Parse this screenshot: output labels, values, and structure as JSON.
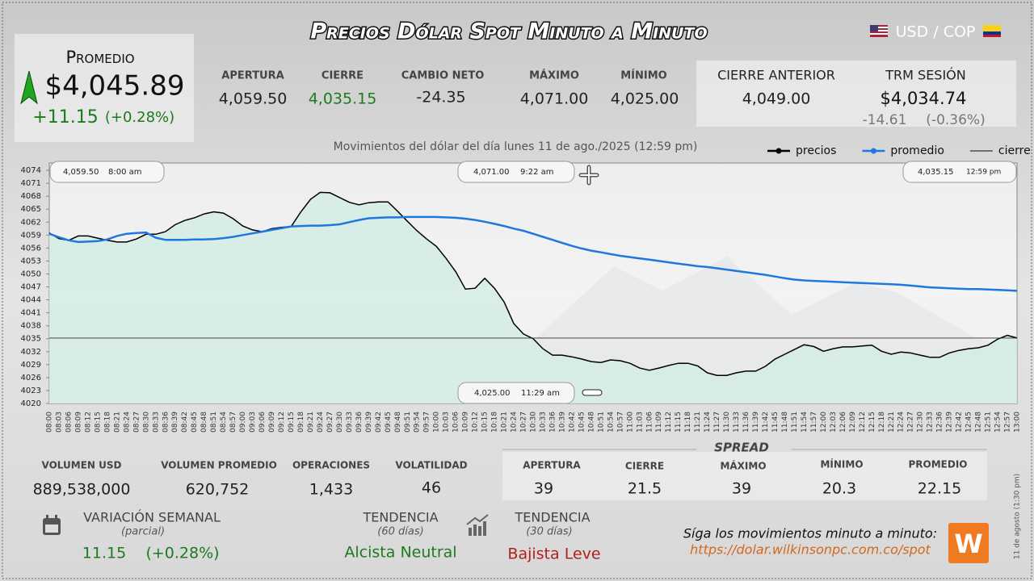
{
  "header": {
    "title": "Precios Dólar Spot Minuto a Minuto",
    "pair": "USD / COP"
  },
  "promedio": {
    "label": "Promedio",
    "value": "$4,045.89",
    "change": "+11.15",
    "change_pct": "(+0.28%)"
  },
  "stats": [
    {
      "label": "APERTURA",
      "value": "4,059.50"
    },
    {
      "label": "CIERRE",
      "value": "4,035.15"
    },
    {
      "label": "CAMBIO NETO",
      "value": "-24.35"
    },
    {
      "label": "MÁXIMO",
      "value": "4,071.00"
    },
    {
      "label": "MÍNIMO",
      "value": "4,025.00"
    }
  ],
  "previous": {
    "label": "CIERRE ANTERIOR",
    "value": "4,049.00"
  },
  "trm": {
    "label": "TRM SESIÓN",
    "value": "$4,034.74",
    "change": "-14.61",
    "change_pct": "(-0.36%)"
  },
  "chart_data": {
    "type": "line",
    "title": "Movimientos del dólar del día lunes 11 de ago./2025 (12:59 pm)",
    "categories": [
      "08:00",
      "08:03",
      "08:06",
      "08:09",
      "08:12",
      "08:15",
      "08:18",
      "08:21",
      "08:24",
      "08:27",
      "08:30",
      "08:33",
      "08:36",
      "08:39",
      "08:42",
      "08:45",
      "08:48",
      "08:51",
      "08:54",
      "08:57",
      "09:00",
      "09:03",
      "09:06",
      "09:09",
      "09:12",
      "09:15",
      "09:18",
      "09:21",
      "09:24",
      "09:27",
      "09:30",
      "09:33",
      "09:36",
      "09:39",
      "09:42",
      "09:45",
      "09:48",
      "09:51",
      "09:54",
      "09:57",
      "10:00",
      "10:03",
      "10:06",
      "10:09",
      "10:12",
      "10:15",
      "10:18",
      "10:21",
      "10:24",
      "10:27",
      "10:30",
      "10:33",
      "10:36",
      "10:39",
      "10:42",
      "10:45",
      "10:48",
      "10:51",
      "10:54",
      "10:57",
      "11:00",
      "11:03",
      "11:06",
      "11:09",
      "11:12",
      "11:15",
      "11:18",
      "11:21",
      "11:24",
      "11:27",
      "11:30",
      "11:33",
      "11:36",
      "11:39",
      "11:42",
      "11:45",
      "11:48",
      "11:51",
      "11:54",
      "11:57",
      "12:00",
      "12:03",
      "12:06",
      "12:09",
      "12:12",
      "12:15",
      "12:18",
      "12:21",
      "12:24",
      "12:27",
      "12:30",
      "12:33",
      "12:36",
      "12:39",
      "12:42",
      "12:45",
      "12:48",
      "12:51",
      "12:54",
      "12:57",
      "13:00"
    ],
    "series": [
      {
        "name": "precios",
        "color": "#000000",
        "marker": "circle",
        "fill": "#d4ece4",
        "values": [
          4059.5,
          4058.2,
          4057.8,
          4058.8,
          4058.8,
          4058.3,
          4057.8,
          4057.4,
          4057.4,
          4058.1,
          4059.2,
          4059.2,
          4059.8,
          4061.4,
          4062.4,
          4063,
          4063.9,
          4064.4,
          4064.1,
          4062.8,
          4061.1,
          4060.2,
          4059.8,
          4060.5,
          4060.8,
          4061,
          4064.4,
          4067.3,
          4068.9,
          4068.8,
          4067.7,
          4066.6,
          4066,
          4066.5,
          4066.7,
          4066.7,
          4064.5,
          4062.2,
          4060,
          4058.1,
          4056.4,
          4053.6,
          4050.5,
          4046.5,
          4046.7,
          4049,
          4046.7,
          4043.5,
          4038.5,
          4036.1,
          4035,
          4032.7,
          4031.2,
          4031.2,
          4030.8,
          4030.3,
          4029.7,
          4029.5,
          4030.1,
          4029.9,
          4029.3,
          4028.2,
          4027.7,
          4028.2,
          4028.8,
          4029.3,
          4029.3,
          4028.7,
          4027.1,
          4026.5,
          4026.5,
          4027.1,
          4027.5,
          4027.5,
          4028.6,
          4030.3,
          4031.4,
          4032.5,
          4033.6,
          4033.2,
          4032.1,
          4032.7,
          4033.1,
          4033.1,
          4033.3,
          4033.5,
          4032.1,
          4031.4,
          4031.9,
          4031.7,
          4031.2,
          4030.7,
          4030.7,
          4031.7,
          4032.3,
          4032.7,
          4032.9,
          4033.5,
          4034.9,
          4035.8,
          4035.15
        ]
      },
      {
        "name": "promedio",
        "color": "#1f78e0",
        "marker": "circle",
        "values": [
          4059.3,
          4058.5,
          4057.8,
          4057.4,
          4057.5,
          4057.6,
          4058,
          4058.8,
          4059.3,
          4059.5,
          4059.6,
          4058.4,
          4057.9,
          4057.9,
          4057.9,
          4058,
          4058,
          4058.1,
          4058.3,
          4058.6,
          4059,
          4059.4,
          4059.8,
          4060.2,
          4060.6,
          4061,
          4061.1,
          4061.2,
          4061.2,
          4061.3,
          4061.5,
          4062,
          4062.5,
          4062.9,
          4063,
          4063.1,
          4063.1,
          4063.2,
          4063.2,
          4063.2,
          4063.2,
          4063.1,
          4063,
          4062.8,
          4062.5,
          4062.1,
          4061.6,
          4061.1,
          4060.5,
          4060,
          4059.3,
          4058.6,
          4057.9,
          4057.2,
          4056.5,
          4055.9,
          4055.4,
          4055,
          4054.6,
          4054.2,
          4053.9,
          4053.6,
          4053.3,
          4053,
          4052.7,
          4052.4,
          4052.1,
          4051.8,
          4051.6,
          4051.3,
          4051,
          4050.7,
          4050.4,
          4050.1,
          4049.8,
          4049.4,
          4049,
          4048.7,
          4048.5,
          4048.4,
          4048.3,
          4048.2,
          4048.1,
          4048,
          4047.9,
          4047.8,
          4047.7,
          4047.6,
          4047.5,
          4047.3,
          4047.1,
          4046.9,
          4046.8,
          4046.7,
          4046.6,
          4046.5,
          4046.5,
          4046.4,
          4046.3,
          4046.2,
          4046.1
        ]
      }
    ],
    "reference_lines": [
      {
        "name": "cierre",
        "value": 4035.15,
        "color": "#333333"
      }
    ],
    "ylim": [
      4020,
      4075.7
    ],
    "yticks": [
      4020,
      4023,
      4026,
      4029,
      4032,
      4035,
      4038,
      4041,
      4044,
      4047,
      4050,
      4053,
      4056,
      4059,
      4062,
      4065,
      4068,
      4071,
      4074
    ],
    "grid": false,
    "legend": "top-right",
    "annotations": [
      {
        "price": "4,059.50",
        "time": "8:00 am"
      },
      {
        "price": "4,071.00",
        "time": "9:22 am"
      },
      {
        "price": "4,035.15",
        "time": "12:59 pm"
      },
      {
        "price": "4,025.00",
        "time": "11:29 am"
      }
    ]
  },
  "volume": [
    {
      "label": "VOLUMEN USD",
      "value": "889,538,000"
    },
    {
      "label": "VOLUMEN PROMEDIO",
      "value": "620,752"
    },
    {
      "label": "OPERACIONES",
      "value": "1,433"
    },
    {
      "label": "VOLATILIDAD",
      "value": "46"
    }
  ],
  "spread": {
    "title": "SPREAD",
    "items": [
      {
        "label": "APERTURA",
        "value": "39"
      },
      {
        "label": "CIERRE",
        "value": "21.5"
      },
      {
        "label": "MÁXIMO",
        "value": "39"
      },
      {
        "label": "MÍNIMO",
        "value": "20.3"
      },
      {
        "label": "PROMEDIO",
        "value": "22.15"
      }
    ]
  },
  "weekly": {
    "label": "VARIACIÓN SEMANAL",
    "note": "(parcial)",
    "value": "11.15",
    "pct": "(+0.28%)"
  },
  "trends": [
    {
      "label": "TENDENCIA",
      "period": "(60 días)",
      "value": "Alcista Neutral"
    },
    {
      "label": "TENDENCIA",
      "period": "(30 días)",
      "value": "Bajista Leve"
    }
  ],
  "footer": {
    "text": "Síga los movimientos minuto a minuto:",
    "link": "https://dolar.wilkinsonpc.com.co/spot",
    "logo": "W",
    "stamp": "11 de agosto (1:30 pm)"
  }
}
